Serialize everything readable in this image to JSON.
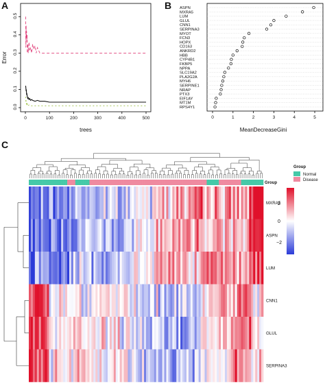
{
  "panels": {
    "a": "A",
    "b": "B",
    "c": "C"
  },
  "chart_data": [
    {
      "type": "line",
      "panel": "A",
      "xlabel": "trees",
      "ylabel": "Error",
      "xlim": [
        0,
        500
      ],
      "ylim": [
        0,
        0.55
      ],
      "xticks": [
        "0",
        "100",
        "200",
        "300",
        "400",
        "500"
      ],
      "yticks": [
        "0.0",
        "0.1",
        "0.2",
        "0.3",
        "0.4",
        "0.5"
      ],
      "series": [
        {
          "color": "#e0407a",
          "dash": "4,3",
          "x": [
            1,
            2,
            3,
            4,
            5,
            6,
            7,
            8,
            10,
            12,
            15,
            18,
            22,
            26,
            30,
            35,
            40,
            45,
            50,
            60,
            80,
            100,
            200,
            300,
            400,
            500
          ],
          "y": [
            0.5,
            0.33,
            0.45,
            0.38,
            0.42,
            0.36,
            0.4,
            0.3,
            0.35,
            0.3,
            0.36,
            0.31,
            0.33,
            0.3,
            0.35,
            0.32,
            0.34,
            0.3,
            0.33,
            0.3,
            0.3,
            0.3,
            0.3,
            0.3,
            0.3,
            0.3
          ]
        },
        {
          "color": "#111111",
          "dash": "",
          "x": [
            1,
            2,
            3,
            4,
            5,
            6,
            8,
            10,
            12,
            15,
            18,
            22,
            26,
            30,
            40,
            50,
            60,
            80,
            100,
            150,
            200,
            300,
            400,
            500
          ],
          "y": [
            0.12,
            0.11,
            0.09,
            0.1,
            0.07,
            0.08,
            0.06,
            0.05,
            0.055,
            0.045,
            0.05,
            0.04,
            0.045,
            0.04,
            0.035,
            0.04,
            0.035,
            0.035,
            0.03,
            0.03,
            0.03,
            0.03,
            0.03,
            0.03
          ]
        },
        {
          "color": "#9bbf3f",
          "dash": "2,3",
          "x": [
            1,
            2,
            3,
            4,
            5,
            6,
            8,
            10,
            15,
            20,
            30,
            50,
            100,
            200,
            300,
            400,
            500
          ],
          "y": [
            0.06,
            0.03,
            0.04,
            0.02,
            0.03,
            0.01,
            0.02,
            0.01,
            0.015,
            0.01,
            0.01,
            0.01,
            0.01,
            0.01,
            0.01,
            0.01,
            0.01
          ]
        }
      ]
    },
    {
      "type": "scatter",
      "panel": "B",
      "xlabel": "MeanDecreaseGini",
      "xlim": [
        0,
        5.2
      ],
      "xticks": [
        "0",
        "1",
        "2",
        "3",
        "4",
        "5"
      ],
      "grid": true,
      "categories": [
        "ASPN",
        "MXRA5",
        "LUM",
        "GLUL",
        "CNN1",
        "SERPINA3",
        "MYOT",
        "FCN3",
        "HOPX",
        "CD163",
        "ANKRD2",
        "HBB",
        "CYP4B1",
        "FKBP5",
        "NPPA",
        "SLC19A2",
        "PLA2G2A",
        "MYH6",
        "SERPINE1",
        "NRAP",
        "PTX3",
        "EIF1AY",
        "MT1M",
        "RPS4Y1"
      ],
      "values": [
        4.95,
        4.4,
        3.6,
        3.0,
        2.85,
        2.65,
        1.78,
        1.55,
        1.48,
        1.45,
        1.2,
        1.0,
        0.92,
        0.9,
        0.78,
        0.6,
        0.55,
        0.5,
        0.45,
        0.42,
        0.38,
        0.18,
        0.15,
        0.12
      ]
    },
    {
      "type": "heatmap",
      "panel": "C",
      "rows": [
        "MXRA5",
        "ASPN",
        "LUM",
        "CNN1",
        "GLUL",
        "SERPINA3"
      ],
      "legend_title": "Group",
      "legend": [
        {
          "label": "Normal",
          "color": "#45c9a8"
        },
        {
          "label": "Disease",
          "color": "#ef8aa0"
        }
      ],
      "colorbar_ticks": [
        "2",
        "0",
        "−2"
      ],
      "colorbar_range": [
        -3,
        3
      ],
      "colors": {
        "low": "#2b3bd8",
        "mid": "#ffffff",
        "high": "#e0102a"
      },
      "n_samples": 116,
      "normal_sample_indices": [
        0,
        1,
        2,
        3,
        4,
        5,
        6,
        7,
        8,
        9,
        10,
        11,
        12,
        13,
        14,
        15,
        16,
        17,
        18,
        23,
        24,
        25,
        26,
        27,
        28,
        29,
        88,
        89,
        90,
        91,
        92,
        93,
        105,
        106,
        107,
        108,
        109,
        110,
        111,
        112,
        113,
        114,
        115
      ]
    }
  ]
}
